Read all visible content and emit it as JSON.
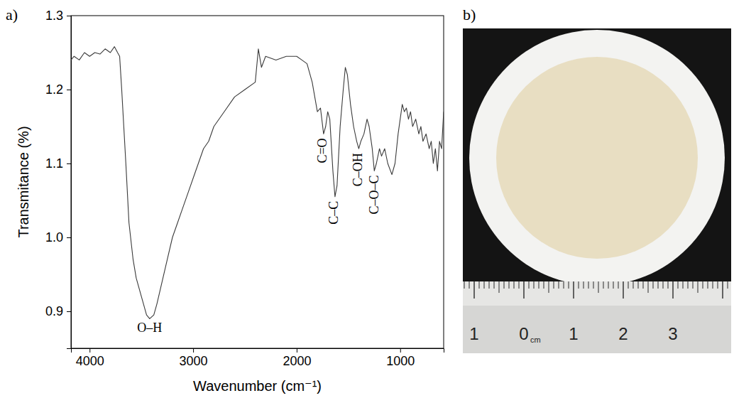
{
  "figure": {
    "panel_labels": [
      "a)",
      "b)"
    ]
  },
  "chart_data": {
    "type": "line",
    "x_label": "Wavenumber (cm⁻¹)",
    "y_label": "Transmitance (%)",
    "xlim": [
      4180,
      580
    ],
    "xticks": [
      4000,
      3000,
      2000,
      1000
    ],
    "ylim": [
      0.85,
      1.3
    ],
    "yticks": [
      0.9,
      {
        "value": 1,
        "label": "1.0"
      },
      1.1,
      1.2,
      1.3
    ],
    "grid": false,
    "color": "#3a3a3a",
    "x": [
      4180,
      4150,
      4100,
      4050,
      4000,
      3950,
      3900,
      3850,
      3800,
      3760,
      3730,
      3710,
      3690,
      3670,
      3650,
      3620,
      3580,
      3550,
      3500,
      3450,
      3420,
      3380,
      3350,
      3300,
      3250,
      3200,
      3150,
      3100,
      3050,
      3000,
      2950,
      2900,
      2850,
      2800,
      2700,
      2600,
      2500,
      2400,
      2370,
      2340,
      2300,
      2200,
      2100,
      2000,
      1950,
      1900,
      1850,
      1800,
      1770,
      1740,
      1720,
      1700,
      1680,
      1650,
      1630,
      1610,
      1580,
      1550,
      1530,
      1510,
      1480,
      1450,
      1420,
      1400,
      1380,
      1350,
      1320,
      1300,
      1270,
      1250,
      1230,
      1200,
      1180,
      1150,
      1120,
      1080,
      1050,
      1020,
      1000,
      980,
      960,
      940,
      920,
      900,
      880,
      850,
      820,
      800,
      780,
      750,
      720,
      700,
      680,
      660,
      640,
      620,
      600,
      580
    ],
    "values": [
      1.24,
      1.245,
      1.24,
      1.25,
      1.245,
      1.25,
      1.248,
      1.255,
      1.25,
      1.258,
      1.25,
      1.245,
      1.2,
      1.15,
      1.1,
      1.02,
      0.97,
      0.945,
      0.92,
      0.895,
      0.89,
      0.895,
      0.91,
      0.94,
      0.97,
      1.0,
      1.02,
      1.04,
      1.06,
      1.08,
      1.1,
      1.12,
      1.13,
      1.15,
      1.17,
      1.19,
      1.2,
      1.21,
      1.255,
      1.23,
      1.245,
      1.24,
      1.245,
      1.245,
      1.24,
      1.235,
      1.21,
      1.17,
      1.175,
      1.14,
      1.15,
      1.17,
      1.16,
      1.09,
      1.055,
      1.07,
      1.15,
      1.2,
      1.23,
      1.22,
      1.18,
      1.15,
      1.13,
      1.12,
      1.13,
      1.14,
      1.16,
      1.15,
      1.12,
      1.09,
      1.1,
      1.12,
      1.11,
      1.12,
      1.1,
      1.085,
      1.1,
      1.14,
      1.16,
      1.18,
      1.17,
      1.175,
      1.16,
      1.17,
      1.15,
      1.16,
      1.14,
      1.15,
      1.13,
      1.14,
      1.12,
      1.13,
      1.1,
      1.12,
      1.09,
      1.13,
      1.12,
      1.17
    ],
    "annotations": [
      {
        "text": "O–H",
        "x": 3420
      },
      {
        "text": "C=O",
        "x": 1740
      },
      {
        "text": "C–C",
        "x": 1630
      },
      {
        "text": "C–OH",
        "x": 1400
      },
      {
        "text": "C–O–C",
        "x": 1240
      }
    ]
  },
  "photo": {
    "ruler": {
      "ticks": [
        {
          "value": -1,
          "label": "1"
        },
        0,
        1,
        2,
        3
      ],
      "unit": "cm"
    }
  }
}
